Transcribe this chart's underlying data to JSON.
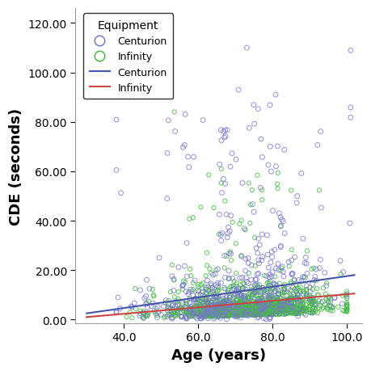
{
  "xlabel": "Age (years)",
  "ylabel": "CDE (seconds)",
  "xlim": [
    27,
    104
  ],
  "ylim": [
    -1.5,
    126
  ],
  "xticks": [
    40.0,
    60.0,
    80.0,
    100.0
  ],
  "yticks": [
    0.0,
    20.0,
    40.0,
    60.0,
    80.0,
    100.0,
    120.0
  ],
  "centurion_color": "#7777cc",
  "infinity_color": "#44bb44",
  "centurion_line_color": "#4455aa",
  "infinity_line_color": "#cc4444",
  "background_color": "#ffffff",
  "legend_title": "Equipment",
  "seed": 99,
  "n_centurion": 500,
  "n_infinity": 1200,
  "centurion_line_x0": 30,
  "centurion_line_x1": 102,
  "centurion_line_y0": 2.5,
  "centurion_line_y1": 18.0,
  "infinity_line_x0": 30,
  "infinity_line_x1": 102,
  "infinity_line_y0": 1.0,
  "infinity_line_y1": 10.5,
  "marker_size": 5,
  "marker_linewidth": 0.7,
  "xlabel_fontsize": 13,
  "ylabel_fontsize": 13,
  "tick_fontsize": 10
}
